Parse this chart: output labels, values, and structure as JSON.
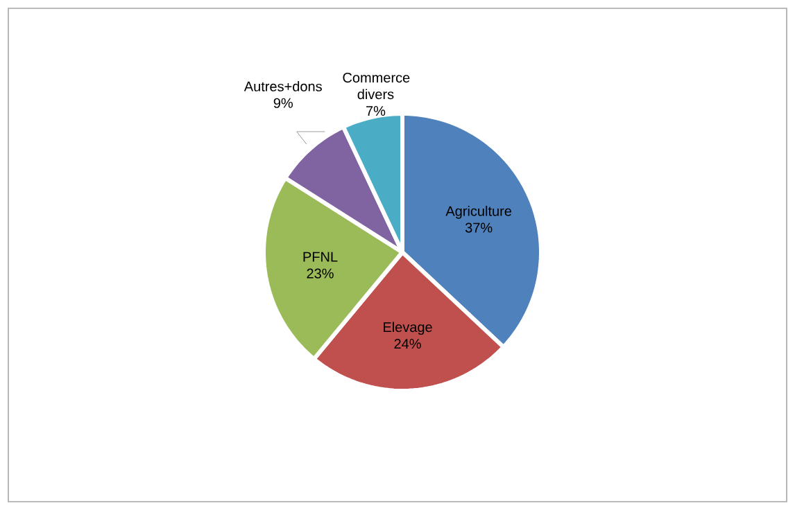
{
  "chart_data": {
    "type": "pie",
    "categories": [
      "Agriculture",
      "Elevage",
      "PFNL",
      "Autres+dons",
      "Commerce divers"
    ],
    "values": [
      37,
      24,
      23,
      9,
      7
    ],
    "value_labels": [
      "37%",
      "24%",
      "23%",
      "9%",
      "7%"
    ],
    "colors": [
      "#4f81bd",
      "#c0504d",
      "#9bbb59",
      "#8064a2",
      "#4bacc6"
    ]
  }
}
